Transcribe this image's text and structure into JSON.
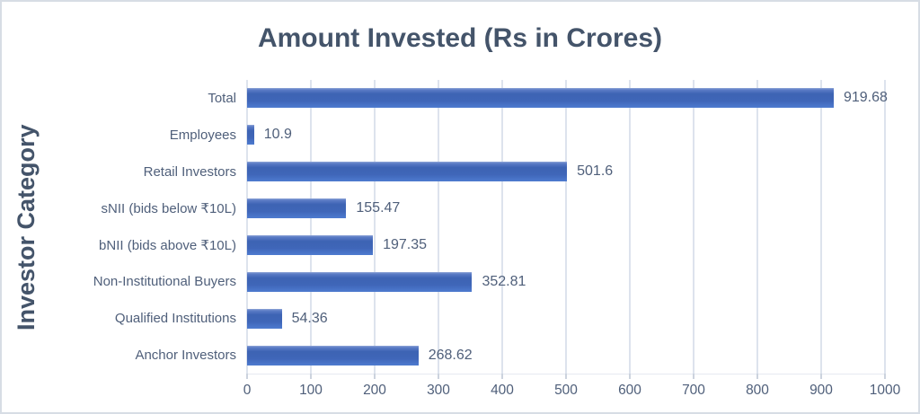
{
  "chart": {
    "title": "Amount Invested (Rs in Crores)",
    "y_axis_title": "Investor Category"
  },
  "chart_data": {
    "type": "bar",
    "orientation": "horizontal",
    "title": "Amount Invested (Rs in Crores)",
    "xlabel": "",
    "ylabel": "Investor Category",
    "categories": [
      "Total",
      "Employees",
      "Retail Investors",
      "sNII (bids below ₹10L)",
      "bNII (bids above ₹10L)",
      "Non-Institutional Buyers",
      "Qualified Institutions",
      "Anchor Investors"
    ],
    "values": [
      919.68,
      10.9,
      501.6,
      155.47,
      197.35,
      352.81,
      54.36,
      268.62
    ],
    "value_labels": [
      "919.68",
      "10.9",
      "501.6",
      "155.47",
      "197.35",
      "352.81",
      "54.36",
      "268.62"
    ],
    "xlim": [
      0,
      1000
    ],
    "x_ticks": [
      0,
      100,
      200,
      300,
      400,
      500,
      600,
      700,
      800,
      900,
      1000
    ],
    "grid": true,
    "legend": "none",
    "colors": {
      "bar": "#4472c4",
      "title_text": "#44546a",
      "label_text": "#4f5f7a",
      "gridline": "#dde3ed",
      "frame_border": "#d7dde5"
    }
  }
}
